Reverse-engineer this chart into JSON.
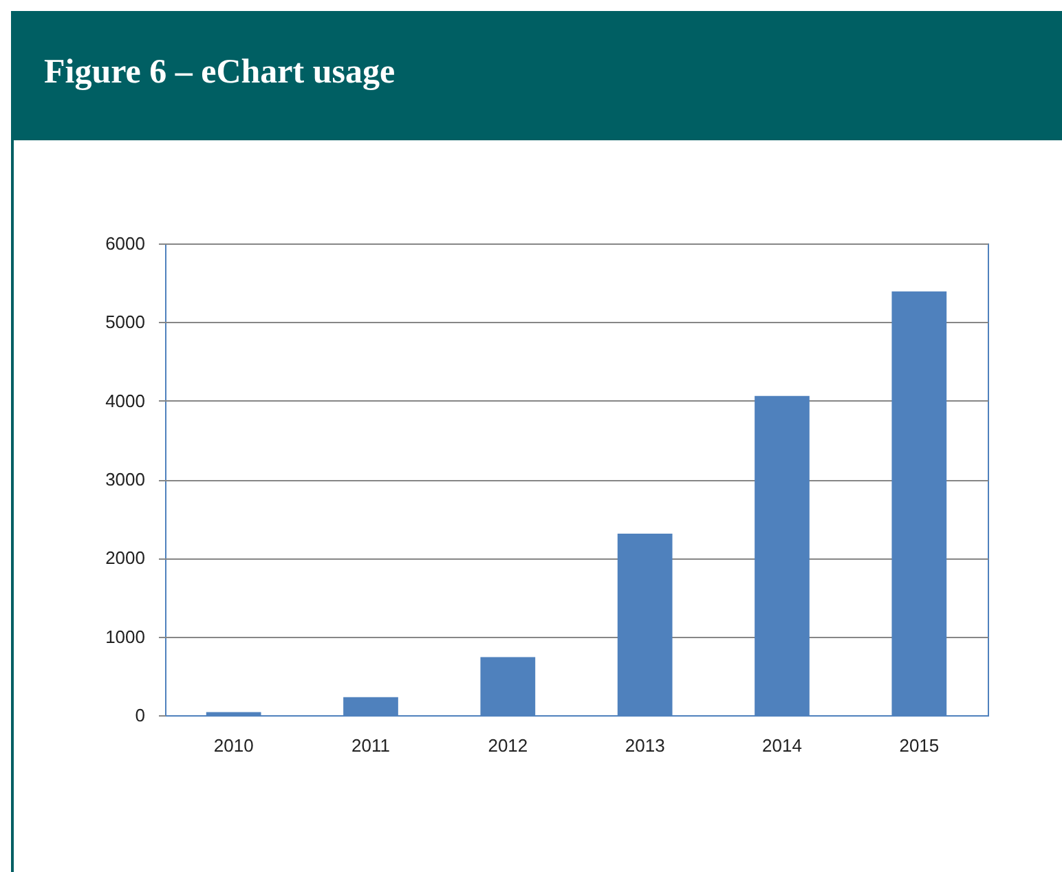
{
  "chart_data": {
    "type": "bar",
    "title": "Figure 6 – eChart usage",
    "categories": [
      "2010",
      "2011",
      "2012",
      "2013",
      "2014",
      "2015"
    ],
    "values": [
      40,
      230,
      740,
      2310,
      4060,
      5390
    ],
    "color": "#4f81bd",
    "ylim": [
      0,
      6000
    ],
    "yticks": [
      0,
      1000,
      2000,
      3000,
      4000,
      5000,
      6000
    ],
    "grid": "y"
  }
}
